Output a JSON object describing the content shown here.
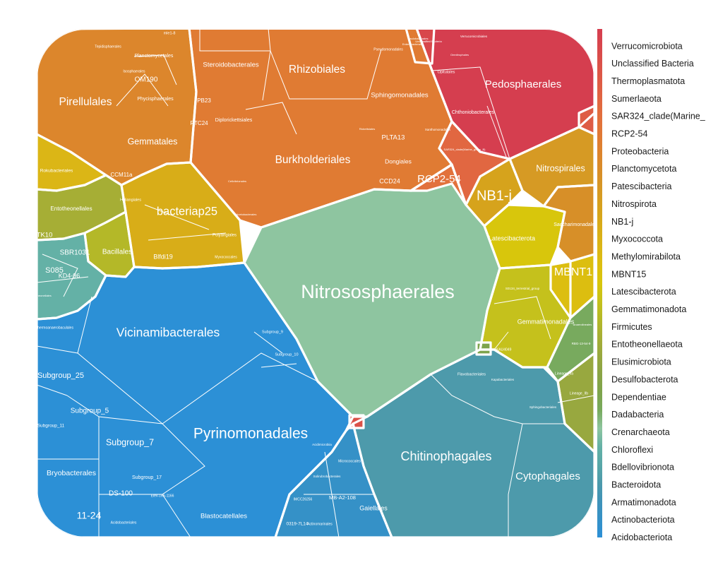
{
  "chart_data": {
    "type": "voronoi-treemap",
    "legend": {
      "placement": "right",
      "scale": "continuous color bar",
      "entries": [
        {
          "name": "Verrucomicrobiota",
          "color": "#d53e4f"
        },
        {
          "name": "Unclassified Bacteria",
          "color": "#d8474c"
        },
        {
          "name": "Thermoplasmatota",
          "color": "#db5249"
        },
        {
          "name": "Sumerlaeota",
          "color": "#de5c45"
        },
        {
          "name": "SAR324_clade(Marine_",
          "color": "#e16741"
        },
        {
          "name": "RCP2-54",
          "color": "#e2713c"
        },
        {
          "name": "Proteobacteria",
          "color": "#e07b33"
        },
        {
          "name": "Planctomycetota",
          "color": "#dc862c"
        },
        {
          "name": "Patescibacteria",
          "color": "#d78f28"
        },
        {
          "name": "Nitrospirota",
          "color": "#d69a24"
        },
        {
          "name": "NB1-j",
          "color": "#d6a31c"
        },
        {
          "name": "Myxococcota",
          "color": "#d8ad18"
        },
        {
          "name": "Methylomirabilota",
          "color": "#dbb616"
        },
        {
          "name": "MBNT15",
          "color": "#dcbe10"
        },
        {
          "name": "Latescibacterota",
          "color": "#d8c60c"
        },
        {
          "name": "Gemmatimonadota",
          "color": "#c5c11c"
        },
        {
          "name": "Firmicutes",
          "color": "#b4b828"
        },
        {
          "name": "Entotheonellaeota",
          "color": "#a6ae35"
        },
        {
          "name": "Elusimicrobiota",
          "color": "#98a83f"
        },
        {
          "name": "Desulfobacterota",
          "color": "#8aa446"
        },
        {
          "name": "Dependentiae",
          "color": "#7ea44c"
        },
        {
          "name": "Dadabacteria",
          "color": "#78aa5e"
        },
        {
          "name": "Crenarchaeota",
          "color": "#8ec5a0"
        },
        {
          "name": "Chloroflexi",
          "color": "#64b1a6"
        },
        {
          "name": "Bdellovibrionota",
          "color": "#58a7a8"
        },
        {
          "name": "Bacteroidota",
          "color": "#4d9aab"
        },
        {
          "name": "Armatimonadota",
          "color": "#3f93b8"
        },
        {
          "name": "Actinobacteriota",
          "color": "#3591c7"
        },
        {
          "name": "Acidobacteriota",
          "color": "#2c90d6"
        }
      ]
    },
    "labels": [
      {
        "text": "Nitrososphaerales",
        "phylum": "Crenarchaeota"
      },
      {
        "text": "Pyrinomonadales",
        "phylum": "Acidobacteriota"
      },
      {
        "text": "Vicinamibacterales",
        "phylum": "Acidobacteriota"
      },
      {
        "text": "Chitinophagales",
        "phylum": "Bacteroidota"
      },
      {
        "text": "Cytophagales",
        "phylum": "Bacteroidota"
      },
      {
        "text": "Burkholderiales",
        "phylum": "Proteobacteria"
      },
      {
        "text": "Rhizobiales",
        "phylum": "Proteobacteria"
      },
      {
        "text": "Pirellulales",
        "phylum": "Planctomycetota"
      },
      {
        "text": "Pedosphaerales",
        "phylum": "Verrucomicrobiota"
      },
      {
        "text": "bacteriap25",
        "phylum": "Myxococcota"
      },
      {
        "text": "NB1-j",
        "phylum": "NB1-j"
      },
      {
        "text": "RCP2-54",
        "phylum": "RCP2-54"
      },
      {
        "text": "MBNT1",
        "phylum": "MBNT15"
      },
      {
        "text": "Nitrospirales",
        "phylum": "Nitrospirota"
      },
      {
        "text": "Gemmatales",
        "phylum": "Planctomycetota"
      },
      {
        "text": "Subgroup_7",
        "phylum": "Acidobacteriota"
      },
      {
        "text": "Subgroup_25",
        "phylum": "Acidobacteriota"
      },
      {
        "text": "Subgroup_5",
        "phylum": "Acidobacteriota"
      },
      {
        "text": "11-24",
        "phylum": "Acidobacteriota"
      },
      {
        "text": "Bryobacterales",
        "phylum": "Acidobacteriota"
      },
      {
        "text": "DS-100",
        "phylum": "Acidobacteriota"
      },
      {
        "text": "Blastocatellales",
        "phylum": "Acidobacteriota"
      },
      {
        "text": "Gaiellales",
        "phylum": "Actinobacteriota"
      },
      {
        "text": "MB-A2-108",
        "phylum": "Actinobacteriota"
      },
      {
        "text": "Bacillales",
        "phylum": "Firmicutes"
      },
      {
        "text": "SBR1031",
        "phylum": "Chloroflexi"
      },
      {
        "text": "KD4-96",
        "phylum": "Chloroflexi"
      },
      {
        "text": "S085",
        "phylum": "Chloroflexi"
      },
      {
        "text": "TK10",
        "phylum": "Chloroflexi"
      },
      {
        "text": "Entotheonellales",
        "phylum": "Entotheonellaeota"
      },
      {
        "text": "Latescibacterota",
        "phylum": "Latescibacterota"
      },
      {
        "text": "Gemmatimonadales",
        "phylum": "Gemmatimonadota"
      },
      {
        "text": "Sphingomonadales",
        "phylum": "Proteobacteria"
      },
      {
        "text": "Steroidobacterales",
        "phylum": "Proteobacteria"
      },
      {
        "text": "PLTA13",
        "phylum": "Proteobacteria"
      },
      {
        "text": "Dongiales",
        "phylum": "Proteobacteria"
      },
      {
        "text": "CCD24",
        "phylum": "Proteobacteria"
      },
      {
        "text": "Diplorickettsiales",
        "phylum": "Proteobacteria"
      },
      {
        "text": "OM190",
        "phylum": "Planctomycetota"
      },
      {
        "text": "Planctomycetales",
        "phylum": "Planctomycetota"
      },
      {
        "text": "Phycisphaerales",
        "phylum": "Planctomycetota"
      },
      {
        "text": "CCM11a",
        "phylum": "Planctomycetota"
      },
      {
        "text": "Blfdi19",
        "phylum": "Myxococcota"
      },
      {
        "text": "Saccharimonadales",
        "phylum": "Patescibacteria"
      },
      {
        "text": "Flavobacteriales",
        "phylum": "Bacteroidota"
      },
      {
        "text": "Chthoniobacterales",
        "phylum": "Verrucomicrobiota"
      },
      {
        "text": "Opitutales",
        "phylum": "Verrucomicrobiota"
      },
      {
        "text": "Rokubacteriales",
        "phylum": "Methylomirabilota"
      },
      {
        "text": "Subgroup_17",
        "phylum": "Acidobacteriota"
      },
      {
        "text": "Subgroup_11",
        "phylum": "Acidobacteriota"
      },
      {
        "text": "Subgroup_9",
        "phylum": "Acidobacteriota"
      },
      {
        "text": "Subgroup_10",
        "phylum": "Acidobacteriota"
      },
      {
        "text": "Elev-16S-1166",
        "phylum": "Acidobacteriota"
      },
      {
        "text": "Acidobacteriales",
        "phylum": "Acidobacteriota"
      },
      {
        "text": "Thermoanaerobaculales",
        "phylum": "Acidobacteriota"
      },
      {
        "text": "Acidimicrobiia",
        "phylum": "Actinobacteriota"
      },
      {
        "text": "Micrococcales",
        "phylum": "Actinobacteriota"
      },
      {
        "text": "Solirubrobacterales",
        "phylum": "Actinobacteriota"
      },
      {
        "text": "Actinomarinales",
        "phylum": "Actinobacteriota"
      },
      {
        "text": "IMCC26256",
        "phylum": "Actinobacteriota"
      },
      {
        "text": "0319-7L14",
        "phylum": "Actinobacteriota"
      },
      {
        "text": "Frankiales",
        "phylum": "Actinobacteriota"
      },
      {
        "text": "Kapabacteriales",
        "phylum": "Bacteroidota"
      },
      {
        "text": "Sphingobacteriales",
        "phylum": "Bacteroidota"
      },
      {
        "text": "Lineage_IIa",
        "phylum": "Elusimicrobiota"
      },
      {
        "text": "Lineage_IIb",
        "phylum": "Elusimicrobiota"
      },
      {
        "text": "Polyangiales",
        "phylum": "Myxococcota"
      },
      {
        "text": "Myxococcales",
        "phylum": "Myxococcota"
      },
      {
        "text": "Haliangiales",
        "phylum": "Myxococcota"
      },
      {
        "text": "Acetobacterales",
        "phylum": "Proteobacteria"
      },
      {
        "text": "Cellvibrionales",
        "phylum": "Proteobacteria"
      },
      {
        "text": "Xanthomonadales",
        "phylum": "Proteobacteria"
      },
      {
        "text": "Pseudomonadales",
        "phylum": "Proteobacteria"
      },
      {
        "text": "Enterobacterales",
        "phylum": "Proteobacteria"
      },
      {
        "text": "Rickettsiales",
        "phylum": "Proteobacteria"
      },
      {
        "text": "Caulobacterales",
        "phylum": "Proteobacteria"
      },
      {
        "text": "Tepidisphaerales",
        "phylum": "Planctomycetota"
      },
      {
        "text": "mle1-8",
        "phylum": "Planctomycetota"
      },
      {
        "text": "Isosphaerales",
        "phylum": "Planctomycetota"
      },
      {
        "text": "Unclassified Bacteria",
        "phylum": "Unclassified Bacteria"
      },
      {
        "text": "Verrucomicrobiales",
        "phylum": "Verrucomicrobiota"
      },
      {
        "text": "Omnitrophales",
        "phylum": "Verrucomicrobiota"
      },
      {
        "text": "SAR324_clade(Marine_group_B)",
        "phylum": "SAR324_clade(Marine_"
      },
      {
        "text": "Entotheonellales",
        "phylum": "Entotheonellaeota"
      },
      {
        "text": "AKAU4049",
        "phylum": "Gemmatimonadota"
      },
      {
        "text": "S0134_terrestrial_group",
        "phylum": "Gemmatimonadota"
      },
      {
        "text": "RBG-13-54-9",
        "phylum": "Chloroflexi"
      },
      {
        "text": "Anaerolineales",
        "phylum": "Chloroflexi"
      },
      {
        "text": "PB23",
        "phylum": "Proteobacteria"
      },
      {
        "text": "RTC24",
        "phylum": "Proteobacteria"
      }
    ]
  }
}
